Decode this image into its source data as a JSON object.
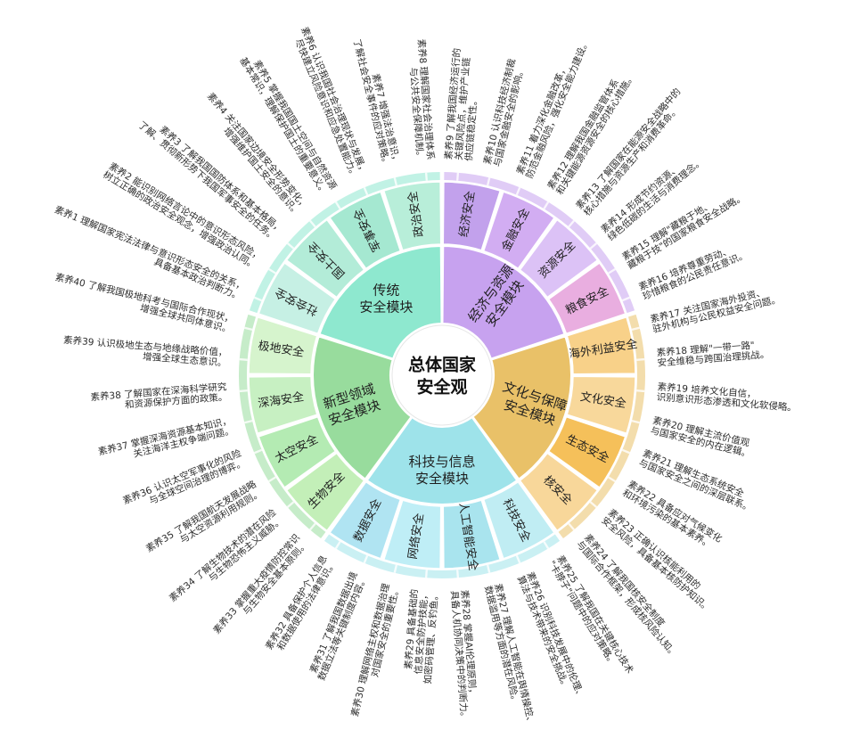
{
  "center": {
    "line1": "总体国家",
    "line2": "安全观"
  },
  "modules": [
    {
      "key": "traditional",
      "label": [
        "传统",
        "安全模块"
      ],
      "color": "#8ee8cf",
      "fields": [
        "社会安全",
        "国土安全",
        "军事安全",
        "政治安全"
      ]
    },
    {
      "key": "economic",
      "label": [
        "经济与资源",
        "安全模块"
      ],
      "color": "#c7a2ef",
      "fields": [
        "经济安全",
        "金融安全",
        "资源安全",
        "粮食安全"
      ]
    },
    {
      "key": "culture",
      "label": [
        "文化与保障",
        "安全模块"
      ],
      "color": "#e9c168",
      "fields": [
        "海外利益安全",
        "文化安全",
        "生态安全",
        "核安全"
      ]
    },
    {
      "key": "tech",
      "label": [
        "科技与信息",
        "安全模块"
      ],
      "color": "#9ee3ea",
      "fields": [
        "科技安全",
        "人工智能安全",
        "网络安全",
        "数据安全"
      ]
    },
    {
      "key": "frontier",
      "label": [
        "新型领域",
        "安全模块"
      ],
      "color": "#98dc9d",
      "fields": [
        "生物安全",
        "太空安全",
        "深海安全",
        "极地安全"
      ]
    }
  ],
  "field_colors": [
    "#c6f0e4",
    "#b3ecd8",
    "#a5e8d1",
    "#b8eed9",
    "#c2a1ec",
    "#d2adf2",
    "#dcc2f6",
    "#e9aee0",
    "#f8d189",
    "#f8d89b",
    "#f5c05a",
    "#f8d79a",
    "#c0edf3",
    "#a9e4ee",
    "#bfeef6",
    "#b0e4f2",
    "#c3efb8",
    "#b4ebb3",
    "#c7f0c2",
    "#d6f4cd"
  ],
  "literacy": [
    {
      "n": 9,
      "text": [
        "素养9 了解我国经济运行的",
        "关键风险点，维护产业链",
        "供应链稳定性。"
      ]
    },
    {
      "n": 10,
      "text": [
        "素养10 认识科技经济制裁",
        "与国家金融安全的影响。"
      ]
    },
    {
      "n": 11,
      "text": [
        "素养11 着力深化金融改革，",
        "防范金融风险，强化安全能力建设。"
      ]
    },
    {
      "n": 12,
      "text": [
        "素养12 理解我国金融监管体系",
        "和关键能源资源安全的核心措施。"
      ]
    },
    {
      "n": 13,
      "text": [
        "素养13 了解国家在能源安全战略中的",
        "核心措施与资源生产和消费革命。"
      ]
    },
    {
      "n": 14,
      "text": [
        "素养14 形成节约资源、",
        "绿色低碳的生活与消费理念。"
      ]
    },
    {
      "n": 15,
      "text": [
        "素养15 理解\"藏粮于地、",
        "藏粮于技\"的国家粮食安全战略。"
      ]
    },
    {
      "n": 16,
      "text": [
        "素养16 培养尊重劳动、",
        "珍惜粮食的公民责任意识。"
      ]
    },
    {
      "n": 17,
      "text": [
        "素养17 关注国家海外投资、",
        "驻外机构与公民权益安全问题。"
      ]
    },
    {
      "n": 18,
      "text": [
        "素养18 理解\"一带一路\"",
        "安全维稳与跨国治理挑战。"
      ]
    },
    {
      "n": 19,
      "text": [
        "素养19 培养文化自信，",
        "识别意识形态渗透和文化软侵略。"
      ]
    },
    {
      "n": 20,
      "text": [
        "素养20 理解主流价值观",
        "与国家安全的内在逻辑。"
      ]
    },
    {
      "n": 21,
      "text": [
        "素养21 理解生态系统安全",
        "与国家安全之间的深层联系。"
      ]
    },
    {
      "n": 22,
      "text": [
        "素养22 具备应对气候变化",
        "和环境污染的基本素养。"
      ]
    },
    {
      "n": 23,
      "text": [
        "素养23 正确认识核能利用的",
        "安全风险，具备基本核防护知识。"
      ]
    },
    {
      "n": 24,
      "text": [
        "素养24 了解我国核安全制度",
        "与国际合作框架，形成核风险认知。"
      ]
    },
    {
      "n": 25,
      "text": [
        "素养25 了解我国在关键核心技术",
        "\"卡脖子\"问题中的应对策略。"
      ]
    },
    {
      "n": 26,
      "text": [
        "素养26 识别科技发展中的伦理、",
        "算法与技术带来的安全挑战。"
      ]
    },
    {
      "n": 27,
      "text": [
        "素养27 理解人工智能在舆情操控、",
        "数据滥用等方面的潜在风险。"
      ]
    },
    {
      "n": 28,
      "text": [
        "素养28 掌握AI伦理原则，",
        "具备人机协同决策中的判断力。"
      ]
    },
    {
      "n": 29,
      "text": [
        "素养29 具备基础的",
        "信息安全防护技能，",
        "如密码管理、反钓鱼。"
      ]
    },
    {
      "n": 30,
      "text": [
        "素养30 理解网络主权和数据治理",
        "对国家安全的重要性。"
      ]
    },
    {
      "n": 31,
      "text": [
        "素养31 了解我国数据出境",
        "数据立法等关键制度内容。"
      ]
    },
    {
      "n": 32,
      "text": [
        "素养32 具备保护个人信息",
        "和数据使用的法律意识。"
      ]
    },
    {
      "n": 33,
      "text": [
        "素养33 掌握重大疫情防控常识",
        "与生物安全基本原则。"
      ]
    },
    {
      "n": 34,
      "text": [
        "素养34 了解生物技术的潜在风险",
        "与生物恐怖主义威胁。"
      ]
    },
    {
      "n": 35,
      "text": [
        "素养35 了解我国航天发展战略",
        "与太空资源利用规则。"
      ]
    },
    {
      "n": 36,
      "text": [
        "素养36 认识太空军事化的风险",
        "与全球空间治理的博弈。"
      ]
    },
    {
      "n": 37,
      "text": [
        "素养37 掌握深海资源基本知识，",
        "关注海洋主权争端问题。"
      ]
    },
    {
      "n": 38,
      "text": [
        "素养38 了解国家在深海科学研究",
        "和资源保护方面的政策。"
      ]
    },
    {
      "n": 39,
      "text": [
        "素养39 认识极地生态与地缘战略价值，",
        "增强全球生态意识。"
      ]
    },
    {
      "n": 40,
      "text": [
        "素养40 了解我国极地科考与国际合作现状，",
        "增强全球共同体意识。"
      ]
    },
    {
      "n": 1,
      "text": [
        "素养1 理解国家宪法法律与意识形态安全的关系，",
        "具备基本政治判断力。"
      ]
    },
    {
      "n": 2,
      "text": [
        "素养2 能识别网络言论中的意识形态风险，",
        "树立正确的政治安全观念，增强政治认同。"
      ]
    },
    {
      "n": 3,
      "text": [
        "素养3 了解我国国防体系和基本格局，",
        "了解、贯彻新形势下我国军事安全的任务。"
      ]
    },
    {
      "n": 4,
      "text": [
        "素养4 关注国家边境安全形势变化，",
        "增强维护国土安全的意识。"
      ]
    },
    {
      "n": 5,
      "text": [
        "素养5 掌握我国国土空间与自然资源",
        "基本常识，理解保护国土的重要意义。"
      ]
    },
    {
      "n": 6,
      "text": [
        "素养6 认识我国社会治理现状与发展，",
        "尽快建立风险意识和应急处置能力。"
      ]
    },
    {
      "n": 7,
      "text": [
        "素养7 增强法治意识，",
        "了解社会安全事件的应对策略。"
      ]
    },
    {
      "n": 8,
      "text": [
        "素养8 理解国家社会治理体系",
        "与公共安全保障机制。"
      ]
    }
  ]
}
